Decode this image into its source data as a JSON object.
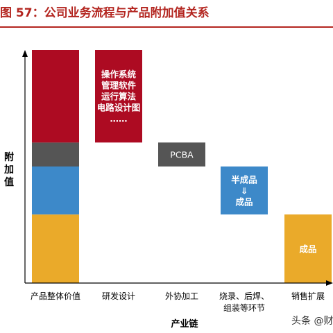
{
  "title": "图 57：公司业务流程与产品附加值关系",
  "watermark": "头条 @财",
  "chart_data": {
    "type": "bar",
    "ylabel": "附加值",
    "xlabel": "产业链",
    "categories": [
      "产品整体价值",
      "研发设计",
      "外协加工",
      "烧录、后焊、组装等环节",
      "销售扩展"
    ],
    "tick_lines": [
      [
        "产品整体价值"
      ],
      [
        "研发设计"
      ],
      [
        "外协加工"
      ],
      [
        "烧录、后焊、",
        "组装等环节"
      ],
      [
        "销售扩展"
      ]
    ],
    "stacked_total": {
      "category": "产品整体价值",
      "segments": [
        {
          "color": "#eaaa2a",
          "y0": 0,
          "y1": 100
        },
        {
          "color": "#3d89c9",
          "y0": 100,
          "y1": 170
        },
        {
          "color": "#555555",
          "y0": 170,
          "y1": 205
        },
        {
          "color": "#ad0b22",
          "y0": 205,
          "y1": 340
        }
      ]
    },
    "floating_bars": [
      {
        "category": "研发设计",
        "y0": 205,
        "y1": 340,
        "color": "#ad0b22",
        "label_lines": [
          "操作系统",
          "管理软件",
          "运行算法",
          "电路设计图",
          "……"
        ]
      },
      {
        "category": "外协加工",
        "y0": 170,
        "y1": 205,
        "color": "#555555",
        "label_lines": [
          "PCBA"
        ]
      },
      {
        "category": "烧录、后焊、组装等环节",
        "y0": 100,
        "y1": 170,
        "color": "#3d89c9",
        "label_lines": [
          "半成品",
          "⇓",
          "成品"
        ]
      },
      {
        "category": "销售扩展",
        "y0": 0,
        "y1": 100,
        "color": "#eaaa2a",
        "label_lines": [
          "成品"
        ]
      }
    ],
    "ylim": [
      0,
      340
    ],
    "grid": false,
    "legend": "none"
  }
}
